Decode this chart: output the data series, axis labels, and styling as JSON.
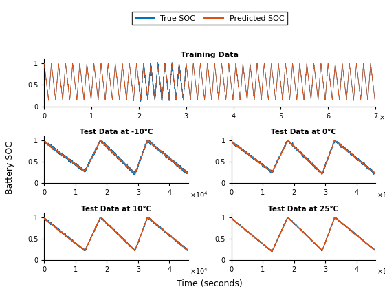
{
  "title_training": "Training Data",
  "title_test_m10": "Test Data at -10°C",
  "title_test_0": "Test Data at 0°C",
  "title_test_10": "Test Data at 10°C",
  "title_test_25": "Test Data at 25°C",
  "ylabel": "Battery SOC",
  "xlabel": "Time (seconds)",
  "legend_true": "True SOC",
  "legend_pred": "Predicted SOC",
  "true_color": "#0072BD",
  "pred_color": "#D95319",
  "train_xlim": [
    0,
    700000
  ],
  "train_ylim": [
    0,
    1.1
  ],
  "train_yticks": [
    0,
    0.5,
    1
  ],
  "test_xlim": [
    0,
    46000
  ],
  "test_ylim": [
    0,
    1.1
  ],
  "test_yticks": [
    0,
    0.5,
    1
  ],
  "bg_color": "#F0F0F0"
}
